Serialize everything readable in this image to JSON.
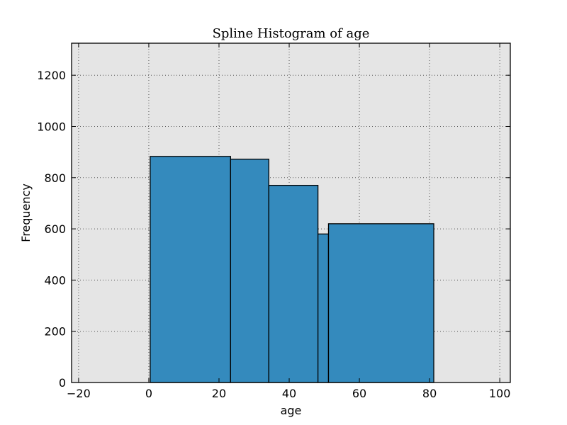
{
  "chart_data": {
    "type": "bar",
    "title": "Spline Histogram of age",
    "xlabel": "age",
    "ylabel": "Frequency",
    "xlim": [
      -22,
      103
    ],
    "ylim": [
      0,
      1325
    ],
    "xticks": [
      -20,
      0,
      20,
      40,
      60,
      80,
      100
    ],
    "yticks": [
      0,
      200,
      400,
      600,
      800,
      1000,
      1200
    ],
    "grid": true,
    "bins": [
      {
        "start": 0.4,
        "end": 23.3,
        "value": 883
      },
      {
        "start": 23.3,
        "end": 34.2,
        "value": 872
      },
      {
        "start": 34.2,
        "end": 48.2,
        "value": 770
      },
      {
        "start": 48.2,
        "end": 51.2,
        "value": 580
      },
      {
        "start": 51.2,
        "end": 81.2,
        "value": 620
      }
    ]
  },
  "colors": {
    "bar_fill": "#348abd",
    "bar_edge": "#000000",
    "plot_bg": "#e5e5e5",
    "grid": "#555555"
  }
}
